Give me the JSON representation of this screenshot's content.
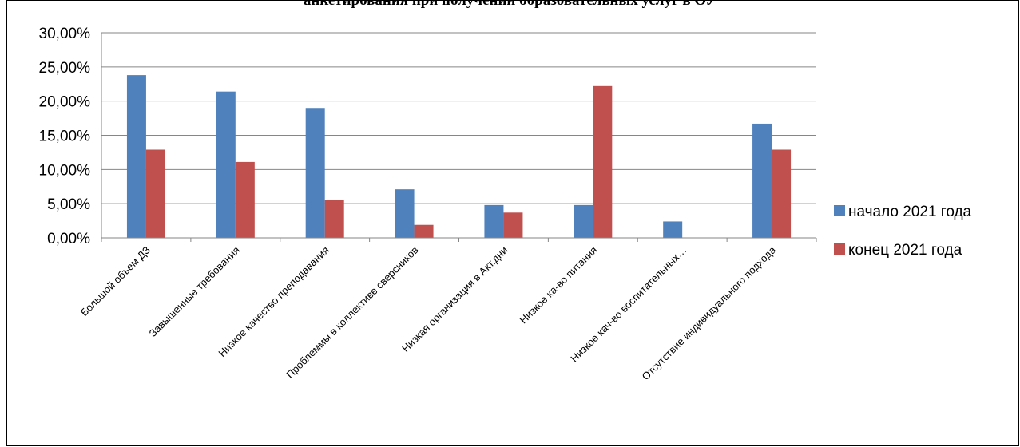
{
  "chart_data": {
    "type": "bar",
    "title": "анкетирования при получении образовательных услуг в ОУ",
    "xlabel": "",
    "ylabel": "",
    "ylim": [
      0,
      30
    ],
    "yticks": [
      "0,00%",
      "5,00%",
      "10,00%",
      "15,00%",
      "20,00%",
      "25,00%",
      "30,00%"
    ],
    "grid": true,
    "legend_position": "right",
    "categories": [
      "Большой объем ДЗ",
      "Завышенные требования",
      "Низкое качество преподавания",
      "Проблеммы в коллективе сверсников",
      "Низкая организация в Акт.дни",
      "Низкое ка-во питания",
      "Низкое кач-во воспитательных…",
      "Отсутствие индивидуального подхода"
    ],
    "series": [
      {
        "name": "начало 2021 года",
        "color": "#4F81BD",
        "values": [
          23.8,
          21.4,
          19.0,
          7.1,
          4.8,
          4.8,
          2.4,
          16.7
        ]
      },
      {
        "name": "конец 2021 года",
        "color": "#C0504D",
        "values": [
          12.9,
          11.1,
          5.6,
          1.9,
          3.7,
          22.2,
          0,
          12.9
        ]
      }
    ]
  }
}
